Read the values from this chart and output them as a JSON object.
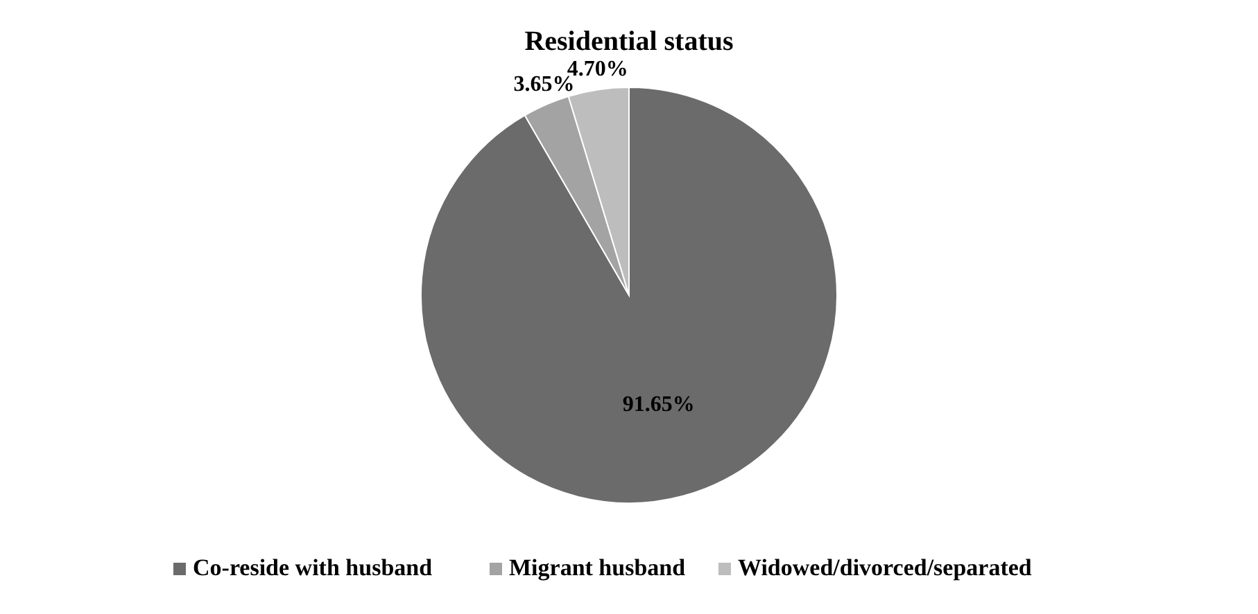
{
  "chart_data": {
    "type": "pie",
    "title": "Residential status",
    "categories": [
      "Co-reside with husband",
      "Migrant husband",
      "Widowed/divorced/separated"
    ],
    "values": [
      91.65,
      3.65,
      4.7
    ],
    "colors": [
      "#6b6b6b",
      "#a3a3a3",
      "#bdbdbd"
    ],
    "value_labels": [
      "91.65%",
      "3.65%",
      "4.70%"
    ],
    "legend": "bottom"
  }
}
